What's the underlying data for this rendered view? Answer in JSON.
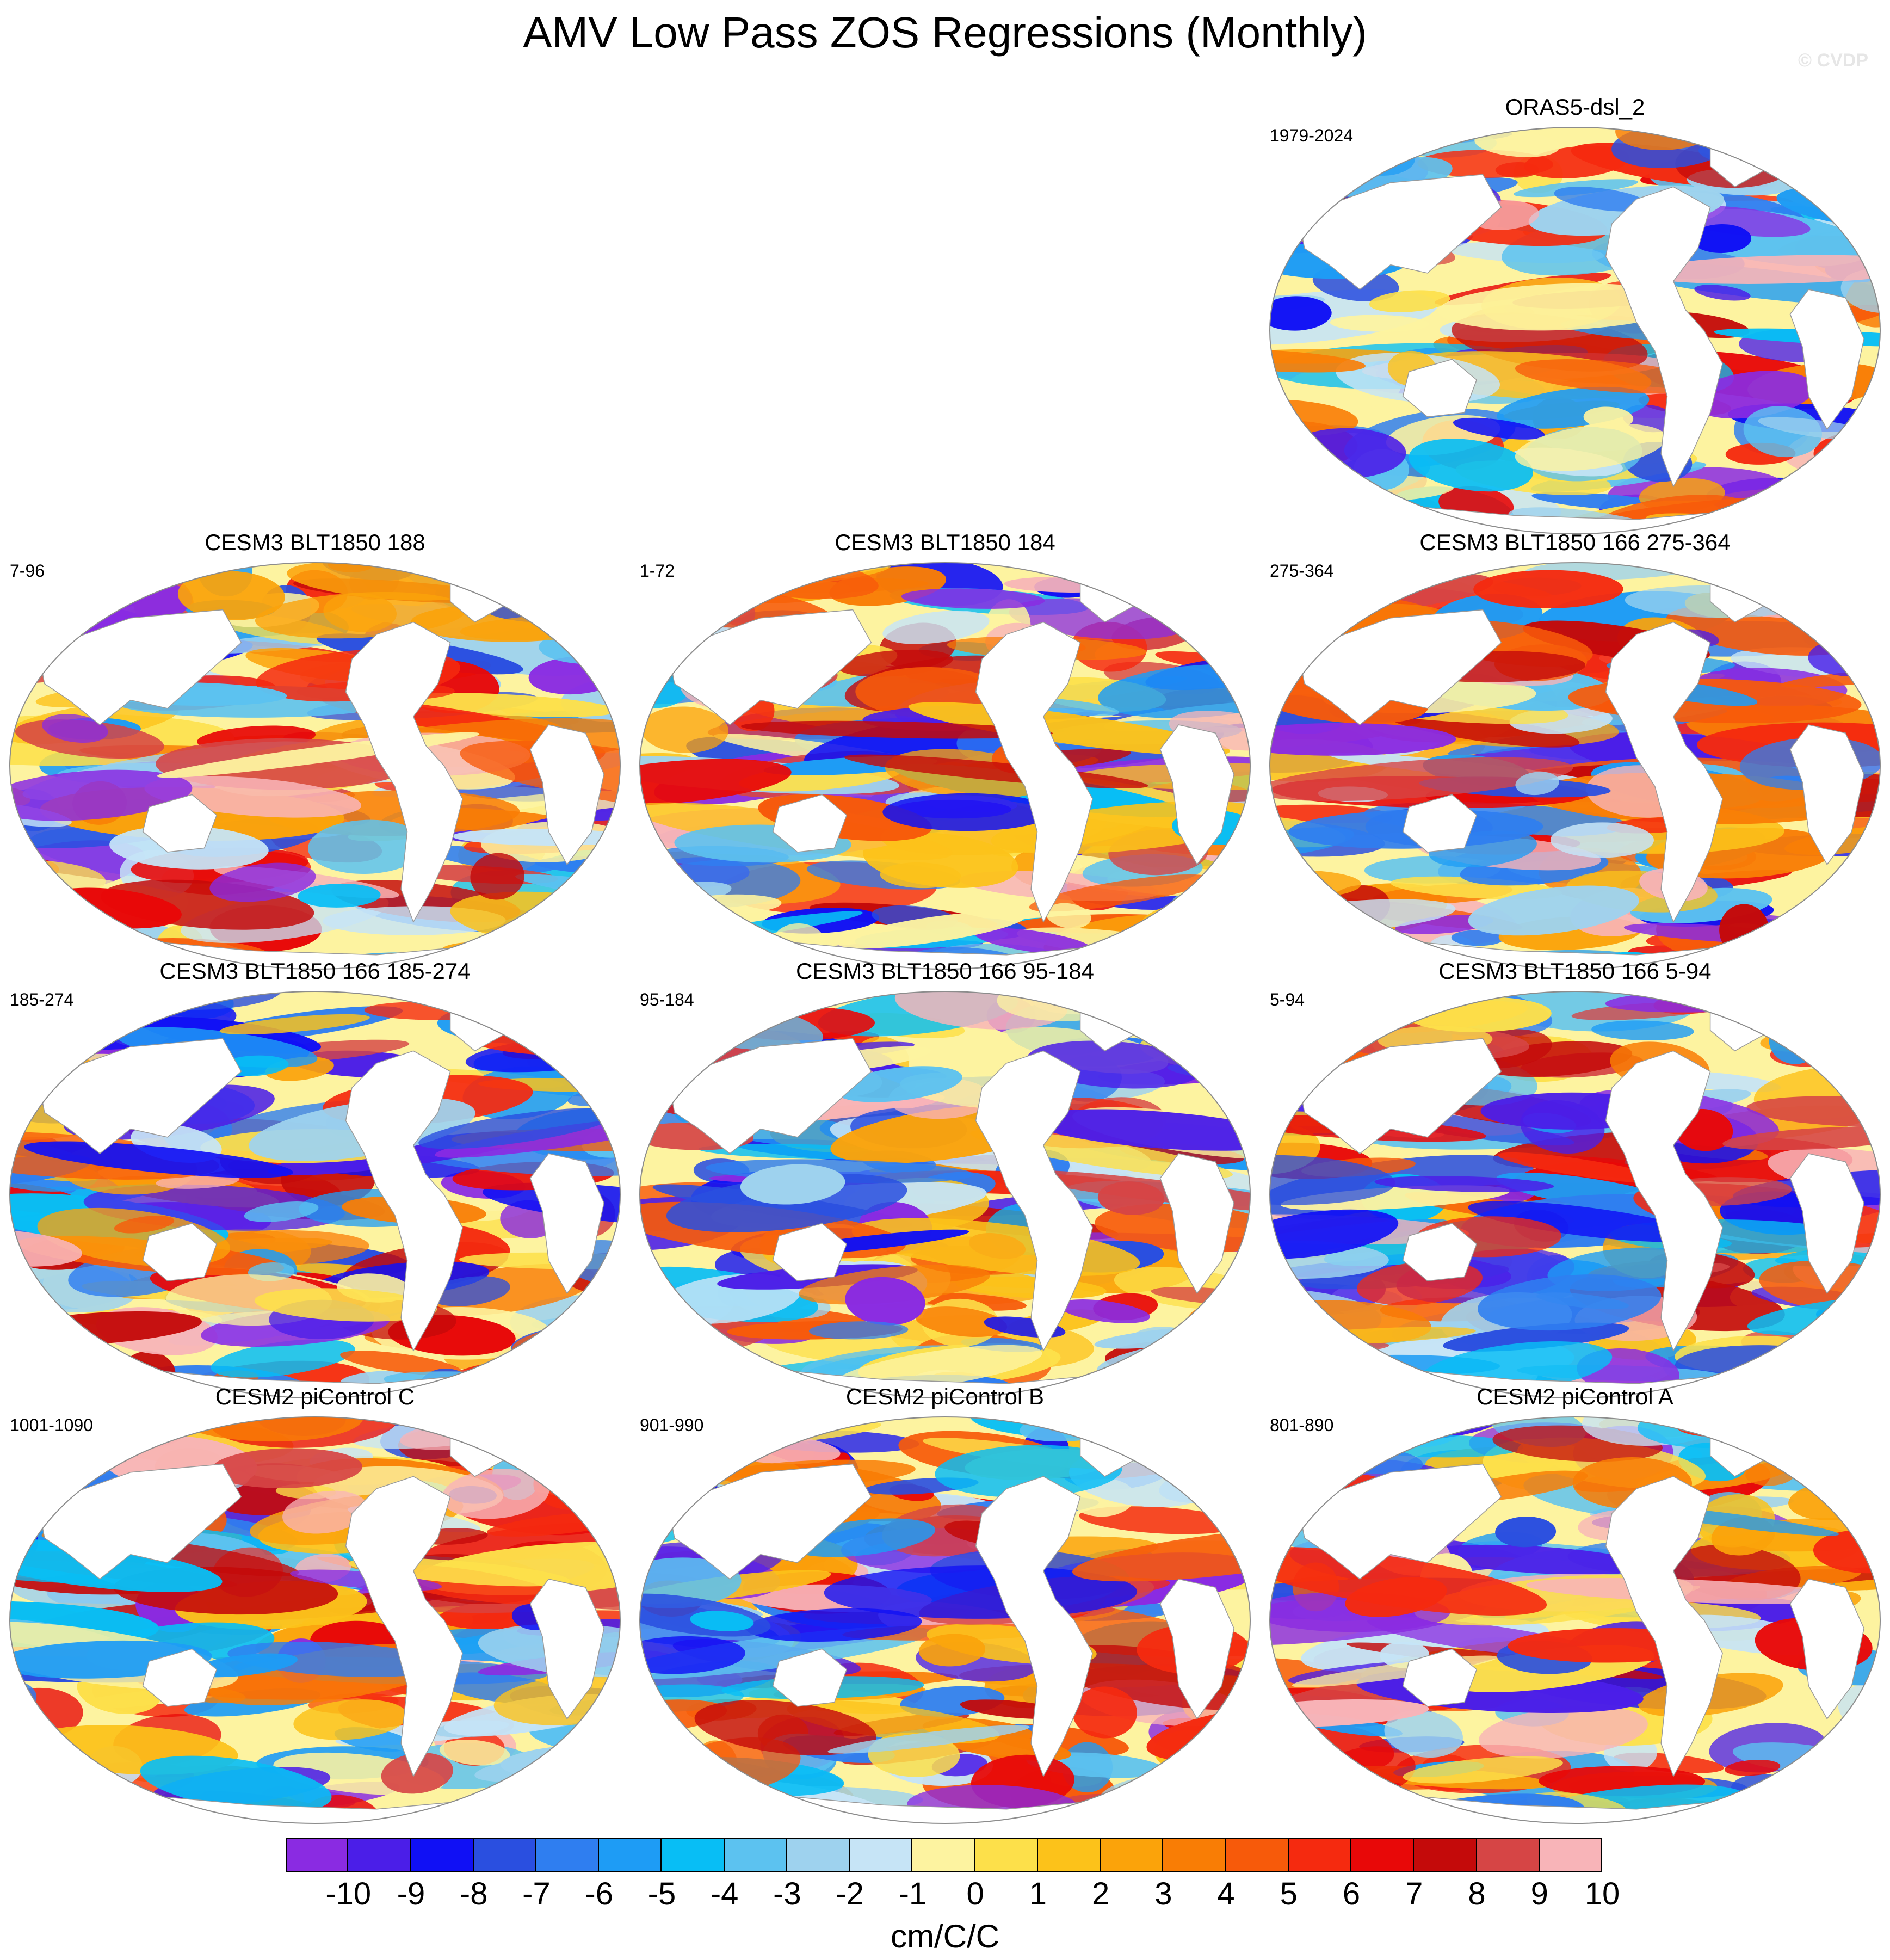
{
  "title": "AMV Low Pass ZOS Regressions (Monthly)",
  "watermark": "© CVDP",
  "panels": [
    {
      "title": "ORAS5-dsl_2",
      "period": "1979-2024",
      "map_icon": "world-map-robinson-regression-field"
    },
    {
      "title": "CESM3 BLT1850 188",
      "period": "7-96",
      "map_icon": "world-map-robinson-regression-field"
    },
    {
      "title": "CESM3 BLT1850 184",
      "period": "1-72",
      "map_icon": "world-map-robinson-regression-field"
    },
    {
      "title": "CESM3 BLT1850 166 275-364",
      "period": "275-364",
      "map_icon": "world-map-robinson-regression-field"
    },
    {
      "title": "CESM3 BLT1850 166 185-274",
      "period": "185-274",
      "map_icon": "world-map-robinson-regression-field"
    },
    {
      "title": "CESM3 BLT1850 166 95-184",
      "period": "95-184",
      "map_icon": "world-map-robinson-regression-field"
    },
    {
      "title": "CESM3 BLT1850 166 5-94",
      "period": "5-94",
      "map_icon": "world-map-robinson-regression-field"
    },
    {
      "title": "CESM2 piControl C",
      "period": "1001-1090",
      "map_icon": "world-map-robinson-regression-field"
    },
    {
      "title": "CESM2 piControl B",
      "period": "901-990",
      "map_icon": "world-map-robinson-regression-field"
    },
    {
      "title": "CESM2 piControl A",
      "period": "801-890",
      "map_icon": "world-map-robinson-regression-field"
    }
  ],
  "colorbar": {
    "labels": [
      "-10",
      "-9",
      "-8",
      "-7",
      "-6",
      "-5",
      "-4",
      "-3",
      "-2",
      "-1",
      "0",
      "1",
      "2",
      "3",
      "4",
      "5",
      "6",
      "7",
      "8",
      "9",
      "10"
    ],
    "colors": [
      "#8a2be2",
      "#4b1ee8",
      "#1010f5",
      "#2a4fe0",
      "#2f7ef0",
      "#1e9cf5",
      "#08bef5",
      "#5cc2f0",
      "#9ed2ee",
      "#c6e4f6",
      "#fdf3a0",
      "#fde04a",
      "#fcc21a",
      "#fba30a",
      "#f97d05",
      "#f75a0a",
      "#f52a0f",
      "#e80808",
      "#c40a0a",
      "#d64545",
      "#f8b4b8"
    ],
    "units": "cm/C/C"
  }
}
